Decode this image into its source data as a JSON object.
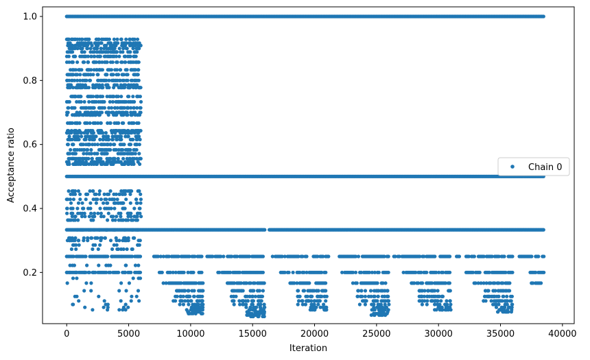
{
  "chart_data": {
    "type": "scatter",
    "xlabel": "Iteration",
    "ylabel": "Acceptance ratio",
    "xlim": [
      -1950,
      40950
    ],
    "ylim": [
      0.04,
      1.03
    ],
    "xticks": [
      0,
      5000,
      10000,
      15000,
      20000,
      25000,
      30000,
      35000,
      40000
    ],
    "xtick_labels": [
      "0",
      "5000",
      "10000",
      "15000",
      "20000",
      "25000",
      "30000",
      "35000",
      "40000"
    ],
    "yticks": [
      0.2,
      0.4,
      0.6,
      0.8,
      1.0
    ],
    "ytick_labels": [
      "0.2",
      "0.4",
      "0.6",
      "0.8",
      "1.0"
    ],
    "grid": false,
    "legend": {
      "placement": "center-right",
      "entries": [
        "Chain 0"
      ]
    },
    "colors": {
      "series": "#1f77b4",
      "axis": "#000000",
      "legend_border": "#cccccc"
    },
    "series": [
      {
        "name": "Chain 0",
        "marker": "circle",
        "bands": [
          {
            "y": 1.0,
            "x_start": 0,
            "x_end": 38500
          },
          {
            "y": 0.5,
            "x_start": 0,
            "x_end": 38500
          },
          {
            "y": 0.3333,
            "x_start": 0,
            "x_end": 38500,
            "gaps": [
              [
                16000,
                16300
              ]
            ]
          },
          {
            "y": 0.25,
            "x_start": 0,
            "x_end": 38500,
            "gaps": [
              [
                6000,
                7000
              ],
              [
                11000,
                11300
              ],
              [
                16000,
                16500
              ],
              [
                21200,
                21700
              ],
              [
                26000,
                26300
              ],
              [
                31000,
                31300
              ],
              [
                36000,
                36500
              ]
            ]
          },
          {
            "y": 0.2,
            "x_start": 0,
            "x_end": 38500,
            "gaps": [
              [
                6000,
                7300
              ],
              [
                11000,
                12200
              ],
              [
                16000,
                17200
              ],
              [
                21000,
                22200
              ],
              [
                26000,
                27100
              ],
              [
                31000,
                32100
              ],
              [
                36000,
                37200
              ]
            ]
          },
          {
            "y": 0.1667,
            "x_start": 7800,
            "x_end": 38300,
            "gaps": [
              [
                11000,
                12800
              ],
              [
                16000,
                18000
              ],
              [
                21000,
                23000
              ],
              [
                26000,
                27800
              ],
              [
                31000,
                32800
              ],
              [
                36000,
                37400
              ]
            ]
          }
        ],
        "early_phase": {
          "x_range": [
            0,
            6000
          ],
          "y_range": [
            0.08,
            0.94
          ],
          "levels": [
            0.9286,
            0.9167,
            0.9091,
            0.9,
            0.8889,
            0.875,
            0.8571,
            0.8333,
            0.8182,
            0.8,
            0.7857,
            0.7778,
            0.75,
            0.7333,
            0.7143,
            0.7,
            0.6923,
            0.6667,
            0.6429,
            0.6364,
            0.625,
            0.6154,
            0.6,
            0.5833,
            0.5714,
            0.5556,
            0.5455,
            0.5385,
            0.4545,
            0.4444,
            0.4286,
            0.4167,
            0.4,
            0.3846,
            0.375,
            0.3636,
            0.3333,
            0.3077,
            0.3,
            0.2857,
            0.2727,
            0.25,
            0.2222,
            0.2,
            0.1818,
            0.1667,
            0.1429,
            0.125,
            0.1111,
            0.1,
            0.0909,
            0.0833
          ]
        },
        "low_clusters": [
          {
            "x_range": [
              8000,
              11000
            ],
            "y_min": 0.07
          },
          {
            "x_range": [
              12500,
              16000
            ],
            "y_min": 0.06
          },
          {
            "x_range": [
              18000,
              21000
            ],
            "y_min": 0.08
          },
          {
            "x_range": [
              22800,
              26000
            ],
            "y_min": 0.065
          },
          {
            "x_range": [
              27800,
              31000
            ],
            "y_min": 0.08
          },
          {
            "x_range": [
              33000,
              36000
            ],
            "y_min": 0.075
          }
        ]
      }
    ]
  }
}
